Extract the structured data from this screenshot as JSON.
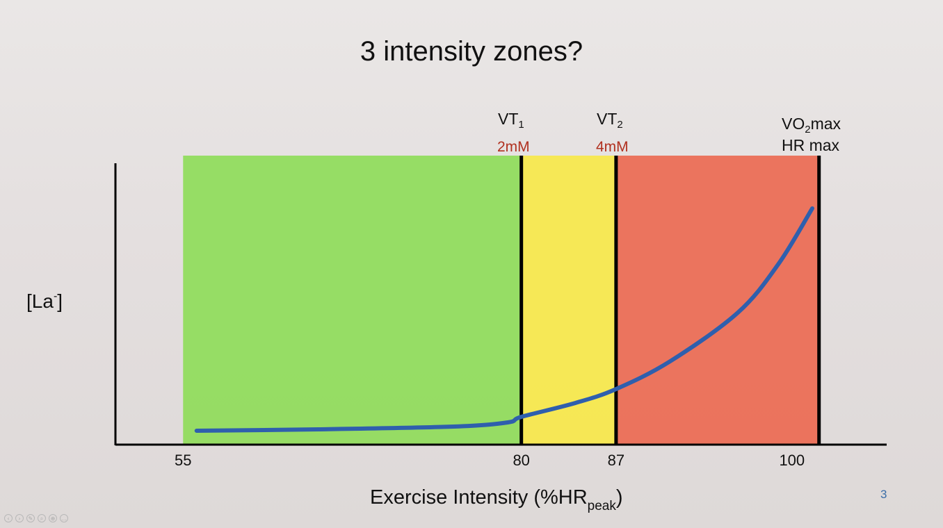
{
  "slide": {
    "title": "3 intensity zones?",
    "page_number": "3"
  },
  "thresholds": [
    {
      "base": "VT",
      "sub": "1",
      "conc": "2mM"
    },
    {
      "base": "VT",
      "sub": "2",
      "conc": "4mM"
    }
  ],
  "max_label": {
    "line1_pre": "VO",
    "line1_sub": "2",
    "line1_post": "max",
    "line2": "HR max"
  },
  "chart_data": {
    "type": "line",
    "ylabel_base": "[La",
    "ylabel_sup": "-",
    "ylabel_close": "]",
    "xlabel_pre": "Exercise Intensity (%HR",
    "xlabel_sub": "peak",
    "xlabel_post": ")",
    "x_ticks": [
      55,
      80,
      87,
      100
    ],
    "zones": [
      {
        "from": 55,
        "to": 80,
        "color": "#8fdc5a"
      },
      {
        "from": 80,
        "to": 87,
        "color": "#f7e84a"
      },
      {
        "from": 87,
        "to": 102,
        "color": "#ec6a52"
      }
    ],
    "threshold_lines": [
      80,
      87,
      102
    ],
    "series": [
      {
        "color": "#2f5fad",
        "x": [
          56,
          65,
          75,
          79,
          80,
          84,
          87,
          91,
          96,
          99,
          101.5
        ],
        "y": [
          1.0,
          1.1,
          1.3,
          1.6,
          2.0,
          3.0,
          4.0,
          6.0,
          9.5,
          13.0,
          17.0
        ]
      }
    ],
    "xlim": [
      50,
      107
    ],
    "ylim": [
      0,
      23
    ]
  },
  "controls": [
    "‹",
    "›",
    "✎",
    "⌕",
    "⊕",
    "…"
  ]
}
